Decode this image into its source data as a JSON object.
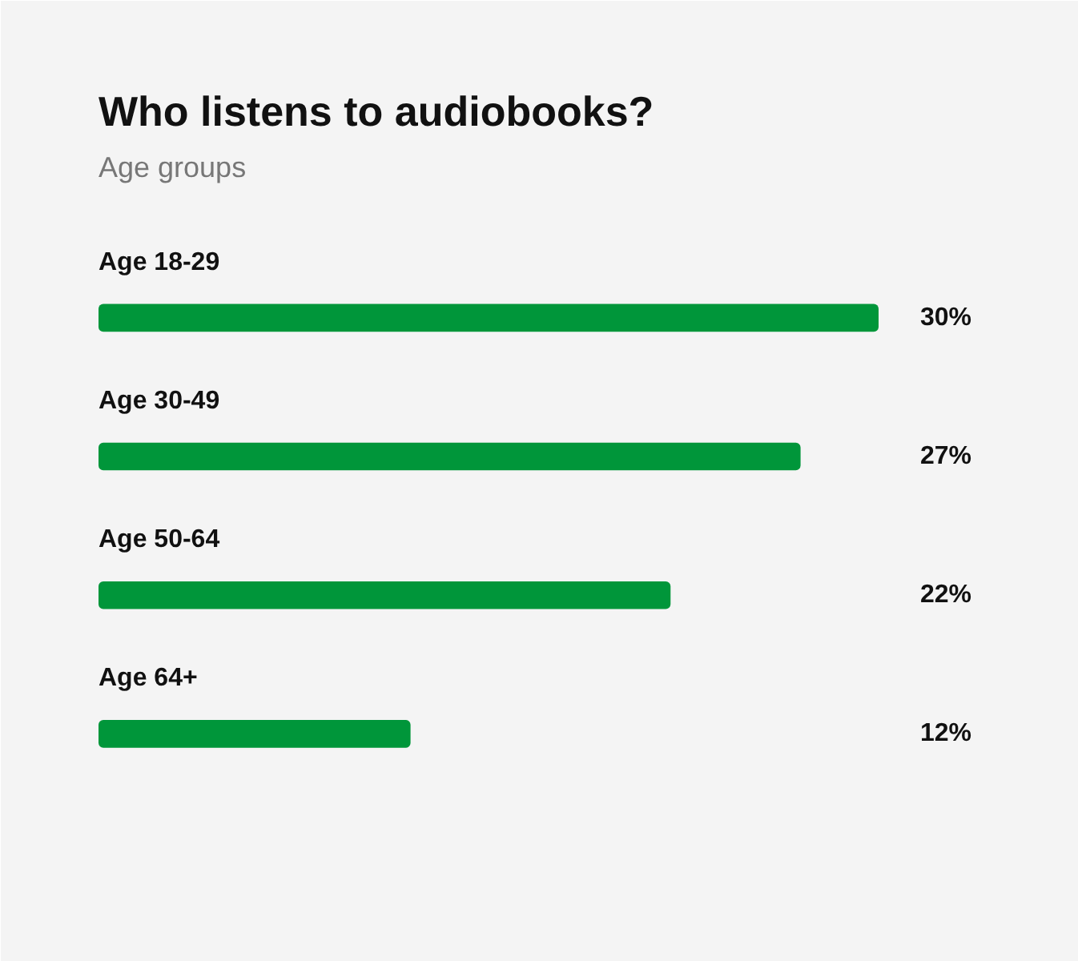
{
  "chart_data": {
    "type": "bar",
    "orientation": "horizontal",
    "title": "Who listens to audiobooks?",
    "subtitle": "Age groups",
    "categories": [
      "Age 18-29",
      "Age 30-49",
      "Age 50-64",
      "Age 64+"
    ],
    "values": [
      30,
      27,
      22,
      12
    ],
    "color": "#00963a",
    "value_labels": [
      "30%",
      "27%",
      "22%",
      "12%"
    ],
    "tick_labels": "y"
  }
}
